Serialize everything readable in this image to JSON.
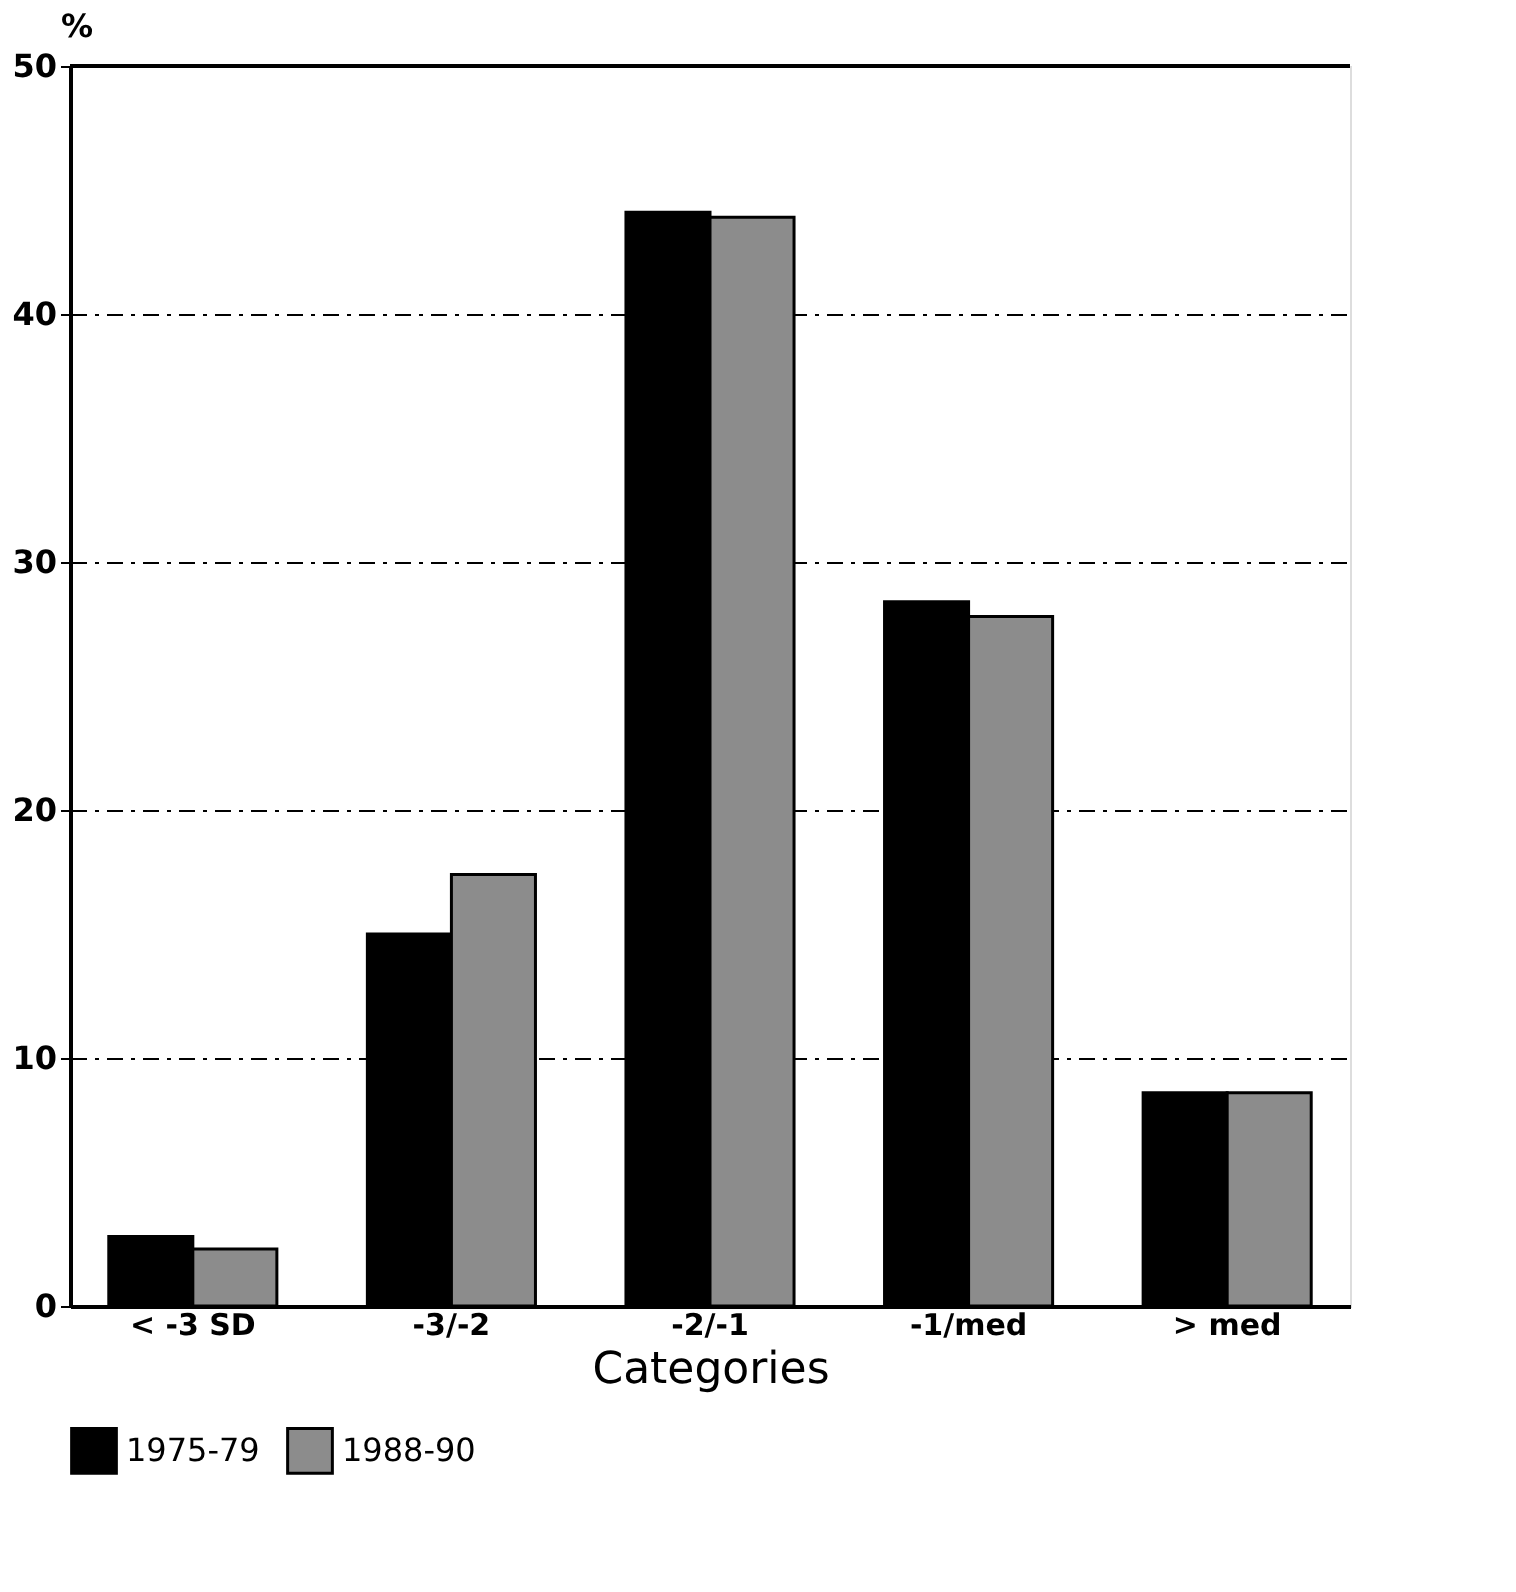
{
  "chart_data": {
    "type": "bar",
    "xlabel": "Categories",
    "ylabel": "%",
    "categories": [
      "< -3 SD",
      "-3/-2",
      "-2/-1",
      "-1/med",
      "> med"
    ],
    "series": [
      {
        "name": "1975-79",
        "color": "#000000",
        "values": [
          2.8,
          15.0,
          44.1,
          28.4,
          8.6
        ]
      },
      {
        "name": "1988-90",
        "color": "#8c8c8c",
        "values": [
          2.3,
          17.4,
          43.9,
          27.8,
          8.6
        ]
      }
    ],
    "ylim": [
      0,
      50
    ],
    "yticks": [
      0,
      10,
      20,
      30,
      40,
      50
    ],
    "grid": "y",
    "legend": "bottom"
  }
}
